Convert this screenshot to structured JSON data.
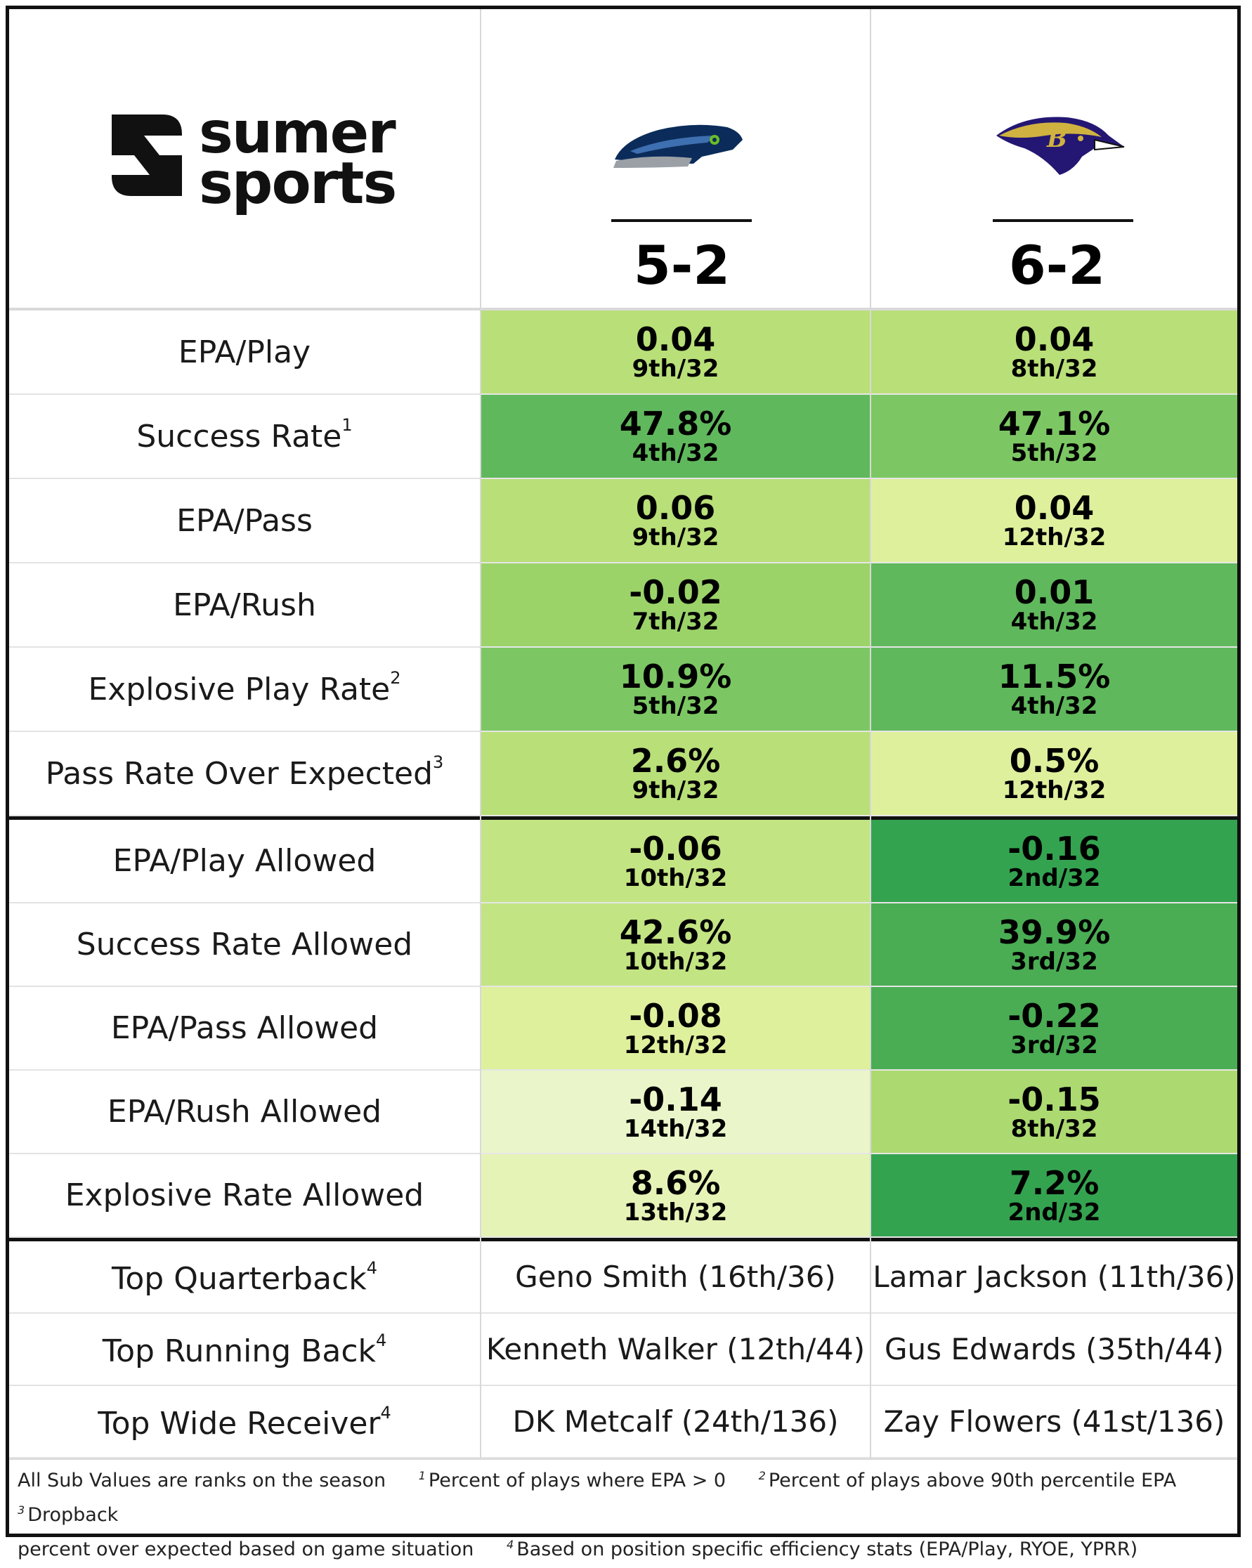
{
  "brand": {
    "line1": "sumer",
    "line2": "sports",
    "icon": "sumer-sports-logo"
  },
  "teams": [
    {
      "logo": "seahawks-logo",
      "record": "5-2"
    },
    {
      "logo": "ravens-logo",
      "record": "6-2"
    }
  ],
  "offense": [
    {
      "label": "EPA/Play",
      "sup": "",
      "vals": [
        {
          "v": "0.04",
          "r": "9th/32",
          "color": "#b9df78"
        },
        {
          "v": "0.04",
          "r": "8th/32",
          "color": "#b9df78"
        }
      ]
    },
    {
      "label": "Success Rate",
      "sup": "1",
      "vals": [
        {
          "v": "47.8%",
          "r": "4th/32",
          "color": "#60b85c"
        },
        {
          "v": "47.1%",
          "r": "5th/32",
          "color": "#7cc763"
        }
      ]
    },
    {
      "label": "EPA/Pass",
      "sup": "",
      "vals": [
        {
          "v": "0.06",
          "r": "9th/32",
          "color": "#b9df78"
        },
        {
          "v": "0.04",
          "r": "12th/32",
          "color": "#dff09d"
        }
      ]
    },
    {
      "label": "EPA/Rush",
      "sup": "",
      "vals": [
        {
          "v": "-0.02",
          "r": "7th/32",
          "color": "#9bd369"
        },
        {
          "v": "0.01",
          "r": "4th/32",
          "color": "#60b85c"
        }
      ]
    },
    {
      "label": "Explosive Play Rate",
      "sup": "2",
      "vals": [
        {
          "v": "10.9%",
          "r": "5th/32",
          "color": "#7cc763"
        },
        {
          "v": "11.5%",
          "r": "4th/32",
          "color": "#60b85c"
        }
      ]
    },
    {
      "label": "Pass Rate Over Expected",
      "sup": "3",
      "vals": [
        {
          "v": "2.6%",
          "r": "9th/32",
          "color": "#b9df78"
        },
        {
          "v": "0.5%",
          "r": "12th/32",
          "color": "#dff09d"
        }
      ]
    }
  ],
  "defense": [
    {
      "label": "EPA/Play Allowed",
      "sup": "",
      "vals": [
        {
          "v": "-0.06",
          "r": "10th/32",
          "color": "#c3e483"
        },
        {
          "v": "-0.16",
          "r": "2nd/32",
          "color": "#34a350"
        }
      ]
    },
    {
      "label": "Success Rate Allowed",
      "sup": "",
      "vals": [
        {
          "v": "42.6%",
          "r": "10th/32",
          "color": "#c3e483"
        },
        {
          "v": "39.9%",
          "r": "3rd/32",
          "color": "#4aad54"
        }
      ]
    },
    {
      "label": "EPA/Pass Allowed",
      "sup": "",
      "vals": [
        {
          "v": "-0.08",
          "r": "12th/32",
          "color": "#dff09d"
        },
        {
          "v": "-0.22",
          "r": "3rd/32",
          "color": "#4aad54"
        }
      ]
    },
    {
      "label": "EPA/Rush Allowed",
      "sup": "",
      "vals": [
        {
          "v": "-0.14",
          "r": "14th/32",
          "color": "#eaf6c9"
        },
        {
          "v": "-0.15",
          "r": "8th/32",
          "color": "#add971"
        }
      ]
    },
    {
      "label": "Explosive Rate Allowed",
      "sup": "",
      "vals": [
        {
          "v": "8.6%",
          "r": "13th/32",
          "color": "#e6f3b7"
        },
        {
          "v": "7.2%",
          "r": "2nd/32",
          "color": "#34a350"
        }
      ]
    }
  ],
  "players": [
    {
      "label": "Top Quarterback",
      "sup": "4",
      "vals": [
        "Geno Smith (16th/36)",
        "Lamar Jackson (11th/36)"
      ]
    },
    {
      "label": "Top Running Back",
      "sup": "4",
      "vals": [
        "Kenneth Walker (12th/44)",
        "Gus Edwards (35th/44)"
      ]
    },
    {
      "label": "Top Wide Receiver",
      "sup": "4",
      "vals": [
        "DK Metcalf (24th/136)",
        "Zay Flowers (41st/136)"
      ]
    }
  ],
  "footnotes": {
    "sub": "All Sub Values are ranks on the season",
    "n1": "1",
    "t1": "Percent of plays where EPA > 0",
    "n2": "2",
    "t2": "Percent of plays above 90th percentile EPA",
    "n3": "3",
    "t3": "Dropback",
    "line2a": "percent over expected based on game situation",
    "n4": "4",
    "t4": "Based on position specific efficiency stats (EPA/Play, RYOE, YPRR)"
  }
}
